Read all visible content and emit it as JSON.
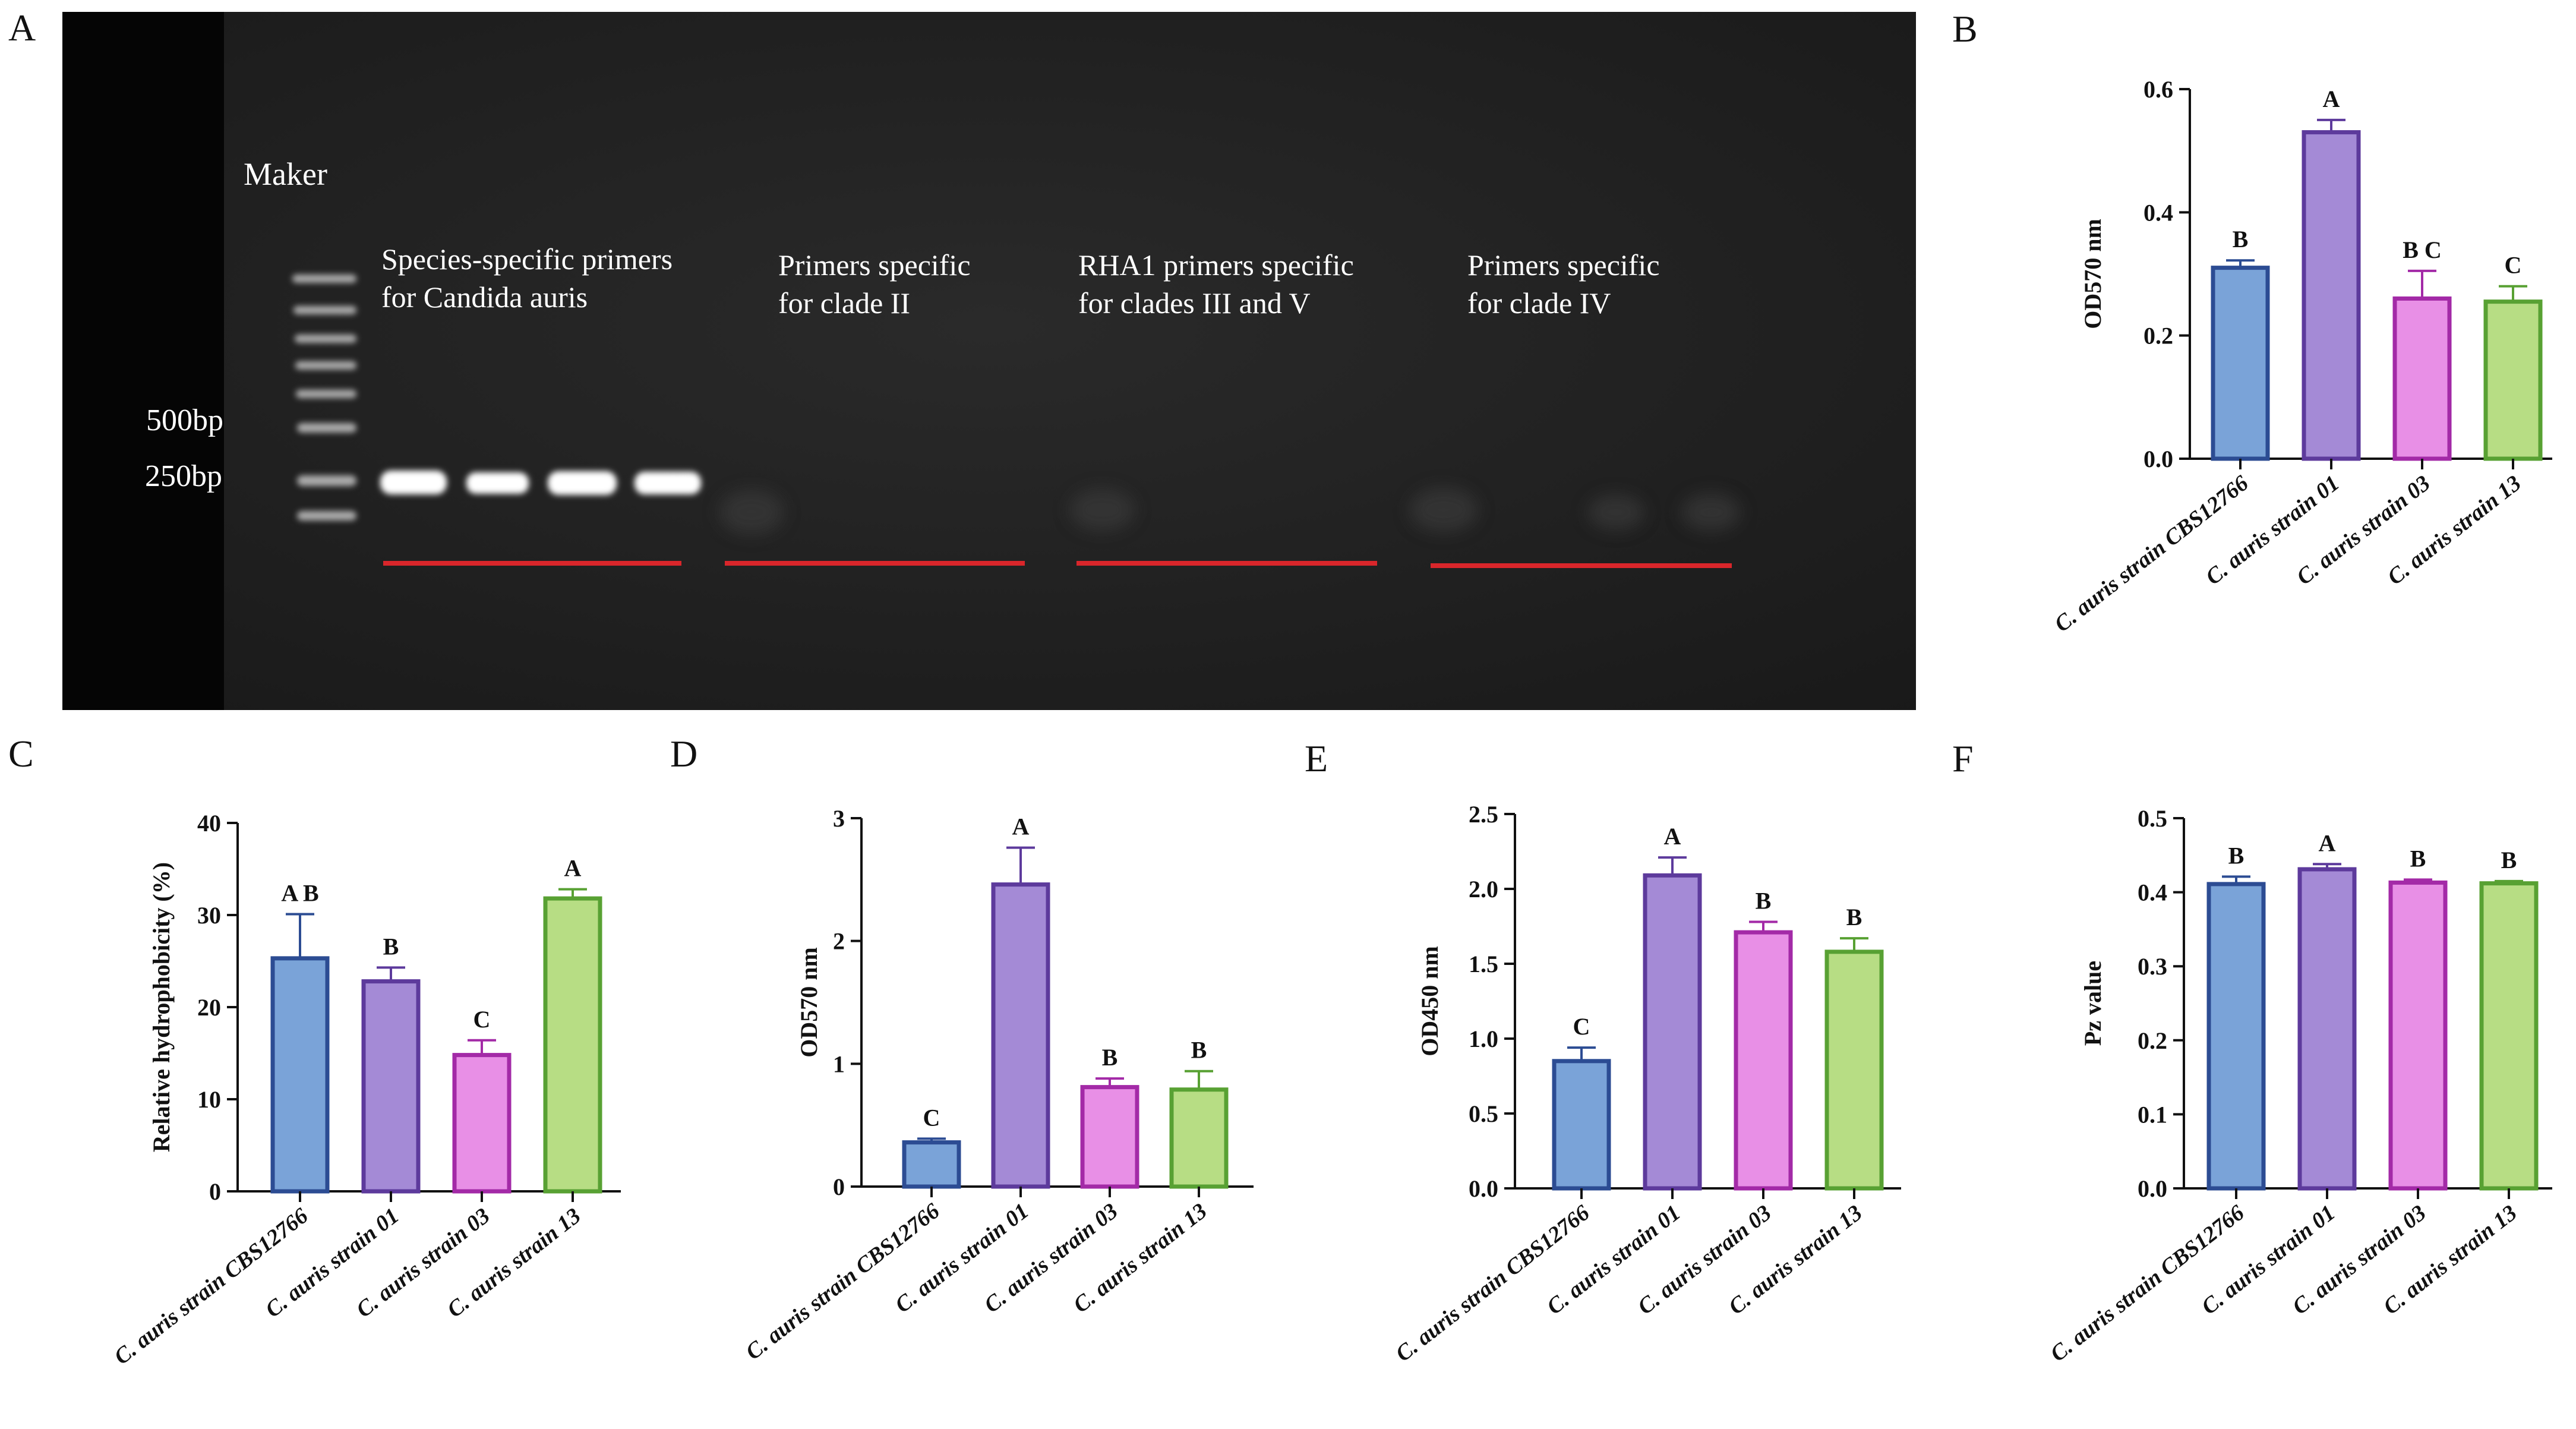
{
  "panels": {
    "a": "A",
    "b": "B",
    "c": "C",
    "d": "D",
    "e": "E",
    "f": "F"
  },
  "gel": {
    "marker_label": "Maker",
    "size_labels": [
      "500bp",
      "250bp"
    ],
    "groups": [
      {
        "line1": "Species-specific primers",
        "line2": "for Candida auris"
      },
      {
        "line1": "Primers specific",
        "line2": "for clade II"
      },
      {
        "line1": "RHA1 primers specific",
        "line2": "for clades III and V"
      },
      {
        "line1": "Primers specific",
        "line2": "for clade IV"
      }
    ],
    "colors": {
      "background": "#1c1c1c",
      "left_strip": "#050505",
      "underline": "#d9262b",
      "band": "#ffffff"
    }
  },
  "colors": {
    "series_fill": [
      "#7aa3d8",
      "#a48ad6",
      "#e88fe6",
      "#b7dd84"
    ],
    "series_stroke": [
      "#2c4c93",
      "#5d3a9c",
      "#a32aa7",
      "#58a133"
    ]
  },
  "chart_data": [
    {
      "id": "B",
      "type": "bar",
      "categories": [
        "C. auris strain CBS12766",
        "C. auris strain 01",
        "C. auris strain 03",
        "C. auris strain 13"
      ],
      "values": [
        0.31,
        0.53,
        0.26,
        0.255
      ],
      "errors": [
        0.012,
        0.02,
        0.045,
        0.025
      ],
      "sig_letters": [
        "B",
        "A",
        "B C",
        "C"
      ],
      "ylabel": "OD570 nm",
      "ylim": [
        0,
        0.6
      ],
      "yticks": [
        0.0,
        0.2,
        0.4,
        0.6
      ],
      "ytick_labels": [
        "0.0",
        "0.2",
        "0.4",
        "0.6"
      ]
    },
    {
      "id": "C",
      "type": "bar",
      "categories": [
        "C. auris strain CBS12766",
        "C. auris strain 01",
        "C. auris strain 03",
        "C. auris strain 13"
      ],
      "values": [
        25.3,
        22.8,
        14.8,
        31.8
      ],
      "errors": [
        4.8,
        1.5,
        1.6,
        1.0
      ],
      "sig_letters": [
        "A B",
        "B",
        "C",
        "A"
      ],
      "ylabel": "Relative hydrophobicity (%)",
      "ylim": [
        0,
        40
      ],
      "yticks": [
        0,
        10,
        20,
        30,
        40
      ],
      "ytick_labels": [
        "0",
        "10",
        "20",
        "30",
        "40"
      ]
    },
    {
      "id": "D",
      "type": "bar",
      "categories": [
        "C. auris strain CBS12766",
        "C. auris strain 01",
        "C. auris strain 03",
        "C. auris strain 13"
      ],
      "values": [
        0.36,
        2.46,
        0.81,
        0.79
      ],
      "errors": [
        0.03,
        0.3,
        0.07,
        0.15
      ],
      "sig_letters": [
        "C",
        "A",
        "B",
        "B"
      ],
      "ylabel": "OD570 nm",
      "ylim": [
        0,
        3
      ],
      "yticks": [
        0,
        1,
        2,
        3
      ],
      "ytick_labels": [
        "0",
        "1",
        "2",
        "3"
      ]
    },
    {
      "id": "E",
      "type": "bar",
      "categories": [
        "C. auris strain CBS12766",
        "C. auris strain 01",
        "C. auris strain 03",
        "C. auris strain 13"
      ],
      "values": [
        0.85,
        2.09,
        1.71,
        1.58
      ],
      "errors": [
        0.09,
        0.12,
        0.07,
        0.09
      ],
      "sig_letters": [
        "C",
        "A",
        "B",
        "B"
      ],
      "ylabel": "OD450 nm",
      "ylim": [
        0,
        2.5
      ],
      "yticks": [
        0.0,
        0.5,
        1.0,
        1.5,
        2.0,
        2.5
      ],
      "ytick_labels": [
        "0.0",
        "0.5",
        "1.0",
        "1.5",
        "2.0",
        "2.5"
      ]
    },
    {
      "id": "F",
      "type": "bar",
      "categories": [
        "C. auris strain CBS12766",
        "C. auris strain 01",
        "C. auris strain 03",
        "C. auris strain 13"
      ],
      "values": [
        0.411,
        0.431,
        0.413,
        0.412
      ],
      "errors": [
        0.01,
        0.007,
        0.004,
        0.003
      ],
      "sig_letters": [
        "B",
        "A",
        "B",
        "B"
      ],
      "ylabel": "Pz value",
      "ylim": [
        0,
        0.5
      ],
      "yticks": [
        0.0,
        0.1,
        0.2,
        0.3,
        0.4,
        0.5
      ],
      "ytick_labels": [
        "0.0",
        "0.1",
        "0.2",
        "0.3",
        "0.4",
        "0.5"
      ]
    }
  ]
}
